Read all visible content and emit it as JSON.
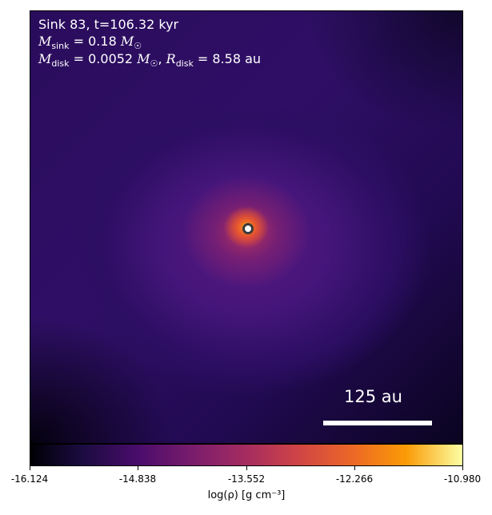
{
  "annotations": {
    "line1": "Sink 83, t=106.32 kyr",
    "msink_value": "= 0.18",
    "mdisk_value": "= 0.0052",
    "rdisk_value": "= 8.58 au"
  },
  "scalebar": {
    "label": "125 au"
  },
  "colorbar": {
    "label": "log(ρ) [g cm⁻³]",
    "ticks": [
      "-16.124",
      "-14.838",
      "-13.552",
      "-12.266",
      "-10.980"
    ],
    "colormap": "inferno"
  },
  "chart_data": {
    "type": "heatmap",
    "title": "",
    "colorbar_label": "log(ρ) [g cm⁻³]",
    "colorbar_range": [
      -16.124,
      -10.98
    ],
    "colorbar_ticks": [
      -16.124,
      -14.838,
      -13.552,
      -12.266,
      -10.98
    ],
    "sink": {
      "id": 83,
      "t_kyr": 106.32,
      "m_sink_msun": 0.18,
      "m_disk_msun": 0.0052,
      "r_disk_au": 8.58
    },
    "scalebar_au": 125
  }
}
